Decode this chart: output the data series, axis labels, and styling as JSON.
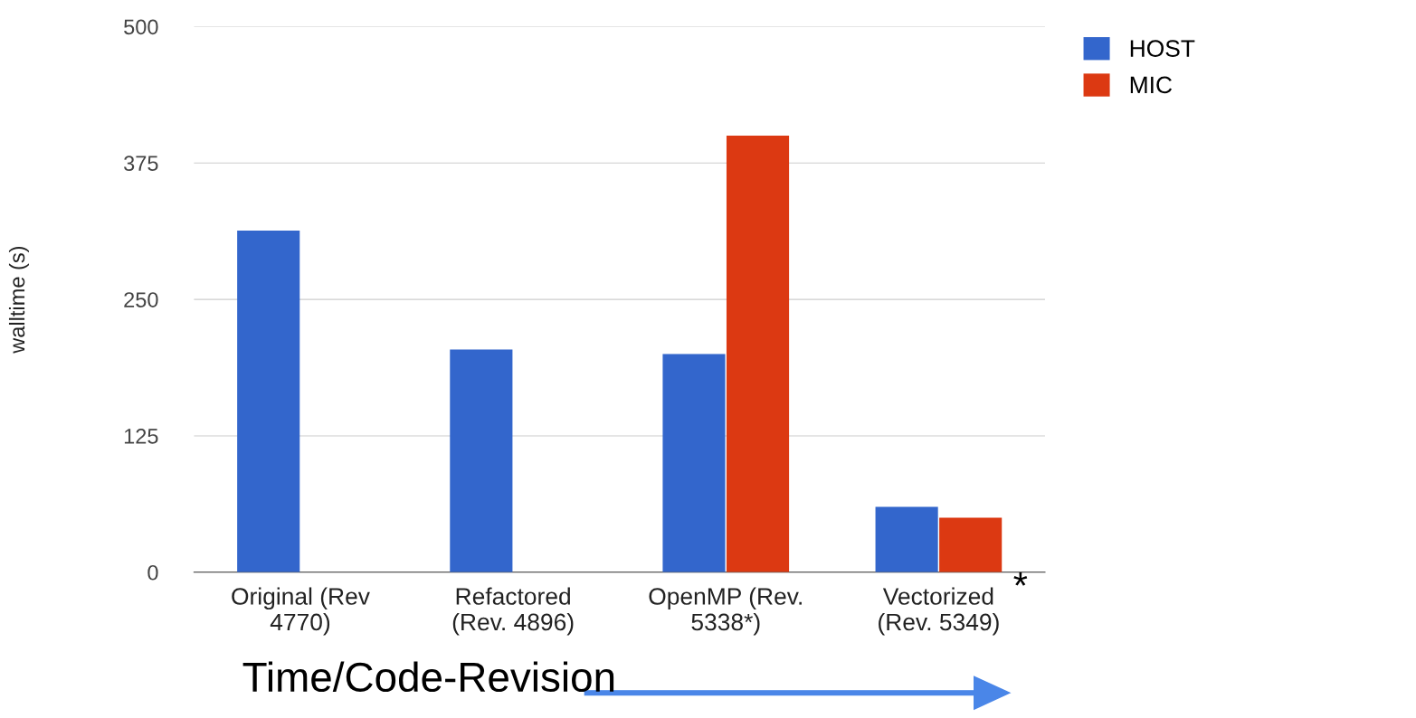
{
  "chart_data": {
    "type": "bar",
    "ylabel": "walltime (s)",
    "categories": [
      "Original (Rev\n4770)",
      "Refactored\n(Rev. 4896)",
      "OpenMP (Rev.\n5338*)",
      "Vectorized\n(Rev. 5349)"
    ],
    "series": [
      {
        "name": "HOST",
        "color": "#3366cc",
        "values": [
          313,
          204,
          200,
          60
        ]
      },
      {
        "name": "MIC",
        "color": "#dc3912",
        "values": [
          null,
          null,
          400,
          50
        ]
      }
    ],
    "ylim": [
      0,
      500
    ],
    "yticks": [
      0,
      125,
      250,
      375,
      500
    ],
    "grid": "y",
    "legend": "top right",
    "annotations": [
      "*",
      "Time/Code-Revision"
    ]
  }
}
